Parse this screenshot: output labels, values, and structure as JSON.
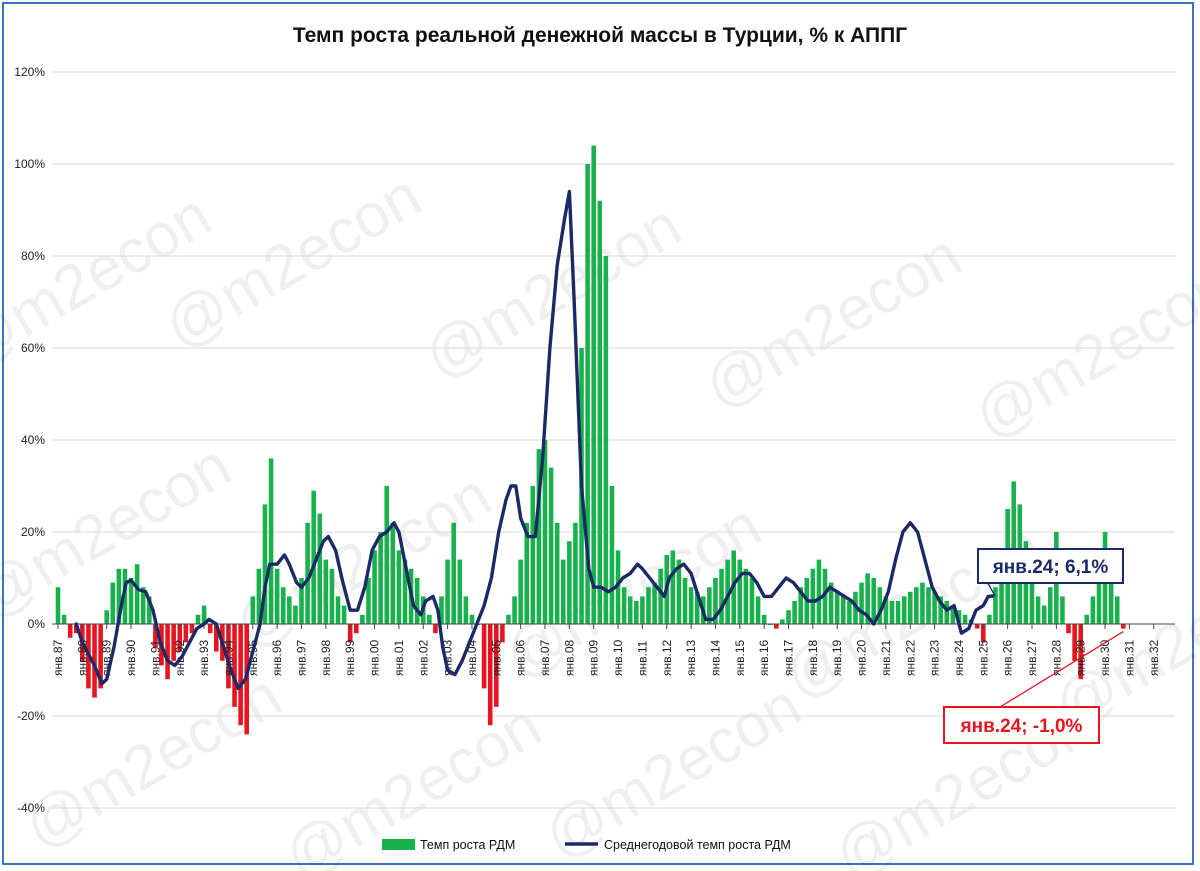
{
  "chart_data": {
    "type": "bar+line",
    "title": "Темп роста реальной денежной массы в Турции, % к АППГ",
    "ylim": [
      -40,
      120
    ],
    "yticks": [
      "-40%",
      "-20%",
      "0%",
      "20%",
      "40%",
      "60%",
      "80%",
      "100%",
      "120%"
    ],
    "ytick_values": [
      -40,
      -20,
      0,
      20,
      40,
      60,
      80,
      100,
      120
    ],
    "xticks": [
      "янв.87",
      "янв.88",
      "янв.89",
      "янв.90",
      "янв.91",
      "янв.92",
      "янв.93",
      "янв.94",
      "янв.95",
      "янв.96",
      "янв.97",
      "янв.98",
      "янв.99",
      "янв.00",
      "янв.01",
      "янв.02",
      "янв.03",
      "янв.04",
      "янв.05",
      "янв.06",
      "янв.07",
      "янв.08",
      "янв.09",
      "янв.10",
      "янв.11",
      "янв.12",
      "янв.13",
      "янв.14",
      "янв.15",
      "янв.16",
      "янв.17",
      "янв.18",
      "янв.19",
      "янв.20",
      "янв.21",
      "янв.22",
      "янв.23",
      "янв.24",
      "янв.25",
      "янв.26",
      "янв.27",
      "янв.28",
      "янв.29",
      "янв.30",
      "янв.31",
      "янв.32"
    ],
    "grid": true,
    "legend_position": "bottom",
    "series": [
      {
        "name": "Темп роста РДМ",
        "kind": "bar",
        "color_positive": "#18b14c",
        "color_negative": "#e8141e",
        "x_start": 1987.0,
        "step": 0.25,
        "values": [
          8,
          2,
          -3,
          -2,
          -8,
          -14,
          -16,
          -14,
          3,
          9,
          12,
          12,
          10,
          13,
          8,
          6,
          -5,
          -9,
          -12,
          -8,
          -6,
          -4,
          -2,
          2,
          4,
          -2,
          -6,
          -8,
          -14,
          -18,
          -22,
          -24,
          6,
          12,
          26,
          36,
          12,
          8,
          6,
          4,
          10,
          22,
          29,
          24,
          14,
          12,
          6,
          4,
          -4,
          -2,
          2,
          10,
          16,
          20,
          30,
          22,
          16,
          14,
          12,
          10,
          6,
          2,
          -2,
          6,
          14,
          22,
          14,
          6,
          2,
          0,
          -14,
          -22,
          -18,
          -4,
          2,
          6,
          14,
          22,
          30,
          38,
          40,
          34,
          22,
          14,
          18,
          22,
          60,
          100,
          104,
          92,
          80,
          30,
          16,
          8,
          6,
          5,
          6,
          8,
          9,
          12,
          15,
          16,
          14,
          10,
          8,
          7,
          6,
          8,
          10,
          12,
          14,
          16,
          14,
          12,
          10,
          6,
          2,
          0,
          -1,
          1,
          3,
          5,
          8,
          10,
          12,
          14,
          12,
          9,
          7,
          6,
          5,
          7,
          9,
          11,
          10,
          8,
          6,
          5,
          5,
          6,
          7,
          8,
          9,
          8,
          7,
          6,
          5,
          4,
          3,
          2,
          1,
          -1,
          -4,
          2,
          8,
          16,
          25,
          31,
          26,
          18,
          10,
          6,
          4,
          8,
          20,
          6,
          -2,
          -8,
          -12,
          2,
          6,
          14,
          20,
          10,
          6,
          -1
        ],
        "end_label": "янв.24; -1,0%"
      },
      {
        "name": "Среднегодовой темп роста РДМ",
        "kind": "line",
        "color": "#1a2a66",
        "points": [
          [
            1987.75,
            0
          ],
          [
            1988.0,
            -4
          ],
          [
            1988.5,
            -9
          ],
          [
            1988.8,
            -13
          ],
          [
            1989.0,
            -12
          ],
          [
            1989.3,
            -5
          ],
          [
            1989.6,
            4
          ],
          [
            1989.8,
            9
          ],
          [
            1990.0,
            9.5
          ],
          [
            1990.3,
            7.5
          ],
          [
            1990.6,
            7
          ],
          [
            1990.9,
            3
          ],
          [
            1991.2,
            -4
          ],
          [
            1991.5,
            -8
          ],
          [
            1991.8,
            -9
          ],
          [
            1992.1,
            -7
          ],
          [
            1992.4,
            -4
          ],
          [
            1992.7,
            -1
          ],
          [
            1993.0,
            0
          ],
          [
            1993.2,
            1
          ],
          [
            1993.5,
            0
          ],
          [
            1993.8,
            -5
          ],
          [
            1994.1,
            -10
          ],
          [
            1994.4,
            -14
          ],
          [
            1994.7,
            -12
          ],
          [
            1995.0,
            -6
          ],
          [
            1995.3,
            0
          ],
          [
            1995.5,
            8
          ],
          [
            1995.7,
            13
          ],
          [
            1996.0,
            13
          ],
          [
            1996.3,
            15
          ],
          [
            1996.5,
            13
          ],
          [
            1996.8,
            9
          ],
          [
            1997.0,
            8
          ],
          [
            1997.3,
            10
          ],
          [
            1997.6,
            14
          ],
          [
            1997.9,
            18
          ],
          [
            1998.1,
            19
          ],
          [
            1998.4,
            16
          ],
          [
            1998.7,
            9
          ],
          [
            1999.0,
            3
          ],
          [
            1999.3,
            3
          ],
          [
            1999.6,
            8
          ],
          [
            1999.9,
            16
          ],
          [
            2000.2,
            19
          ],
          [
            2000.5,
            20
          ],
          [
            2000.8,
            22
          ],
          [
            2001.0,
            20
          ],
          [
            2001.3,
            12
          ],
          [
            2001.6,
            4
          ],
          [
            2001.9,
            2
          ],
          [
            2002.1,
            5
          ],
          [
            2002.4,
            6
          ],
          [
            2002.6,
            3
          ],
          [
            2002.8,
            -5
          ],
          [
            2003.0,
            -10
          ],
          [
            2003.3,
            -11
          ],
          [
            2003.6,
            -8
          ],
          [
            2003.9,
            -4
          ],
          [
            2004.2,
            0
          ],
          [
            2004.5,
            4
          ],
          [
            2004.8,
            10
          ],
          [
            2005.1,
            20
          ],
          [
            2005.4,
            27
          ],
          [
            2005.6,
            30
          ],
          [
            2005.8,
            30
          ],
          [
            2006.0,
            23
          ],
          [
            2006.3,
            19
          ],
          [
            2006.6,
            19
          ],
          [
            2006.9,
            36
          ],
          [
            2007.2,
            60
          ],
          [
            2007.5,
            78
          ],
          [
            2007.8,
            88
          ],
          [
            2008.0,
            94
          ],
          [
            2008.2,
            70
          ],
          [
            2008.5,
            30
          ],
          [
            2008.8,
            12
          ],
          [
            2009.0,
            8
          ],
          [
            2009.3,
            8
          ],
          [
            2009.6,
            7
          ],
          [
            2009.9,
            8
          ],
          [
            2010.2,
            10
          ],
          [
            2010.5,
            11
          ],
          [
            2010.8,
            13
          ],
          [
            2011.0,
            12
          ],
          [
            2011.3,
            10
          ],
          [
            2011.6,
            8
          ],
          [
            2011.9,
            6
          ],
          [
            2012.1,
            10
          ],
          [
            2012.4,
            12
          ],
          [
            2012.7,
            13
          ],
          [
            2013.0,
            11
          ],
          [
            2013.3,
            6
          ],
          [
            2013.6,
            1
          ],
          [
            2013.9,
            1
          ],
          [
            2014.2,
            3
          ],
          [
            2014.5,
            6
          ],
          [
            2014.8,
            9
          ],
          [
            2015.1,
            11
          ],
          [
            2015.4,
            11
          ],
          [
            2015.7,
            9
          ],
          [
            2016.0,
            6
          ],
          [
            2016.3,
            6
          ],
          [
            2016.6,
            8
          ],
          [
            2016.9,
            10
          ],
          [
            2017.2,
            9
          ],
          [
            2017.5,
            7
          ],
          [
            2017.8,
            5
          ],
          [
            2018.1,
            5
          ],
          [
            2018.4,
            6
          ],
          [
            2018.7,
            8
          ],
          [
            2019.0,
            7
          ],
          [
            2019.3,
            6
          ],
          [
            2019.6,
            5
          ],
          [
            2019.9,
            3
          ],
          [
            2020.2,
            2
          ],
          [
            2020.5,
            0
          ],
          [
            2020.8,
            3
          ],
          [
            2021.1,
            7
          ],
          [
            2021.4,
            14
          ],
          [
            2021.7,
            20
          ],
          [
            2022.0,
            22
          ],
          [
            2022.3,
            20
          ],
          [
            2022.6,
            14
          ],
          [
            2022.9,
            8
          ],
          [
            2023.2,
            5
          ],
          [
            2023.5,
            3
          ],
          [
            2023.8,
            4
          ],
          [
            2024.1,
            -2
          ],
          [
            2024.4,
            -1
          ],
          [
            2024.7,
            3
          ],
          [
            2025.0,
            4
          ],
          [
            2025.2,
            6
          ],
          [
            2025.4,
            6.1
          ]
        ],
        "end_label": "янв.24; 6,1%"
      }
    ],
    "watermark": "@m2econ"
  }
}
